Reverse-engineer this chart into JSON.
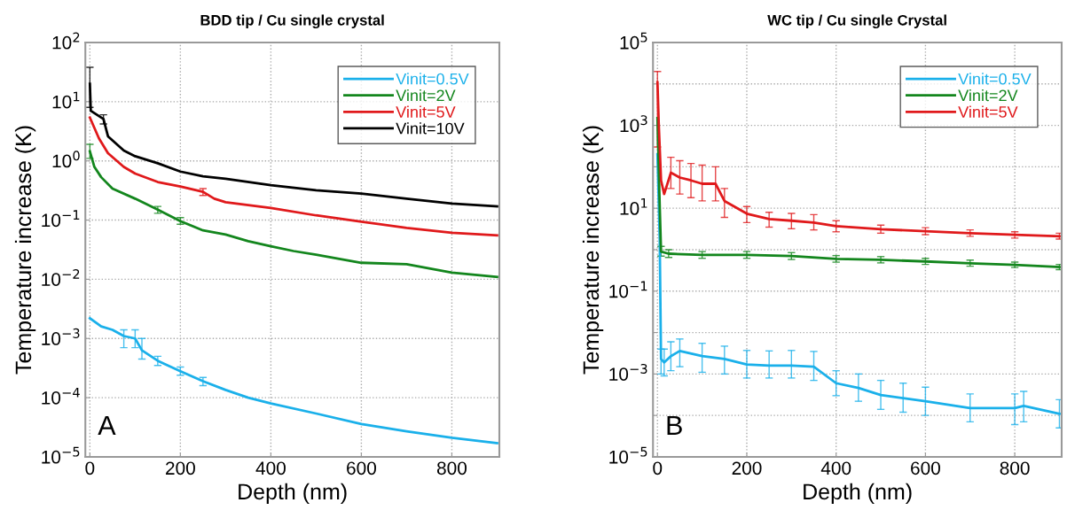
{
  "chart_data": [
    {
      "type": "line",
      "title": "BDD tip / Cu single crystal",
      "xlabel": "Depth (nm)",
      "ylabel": "Temperature increase (K)",
      "annotations": [
        "A"
      ],
      "log": "y",
      "grid": true,
      "legend": "top right",
      "marker": "none",
      "line_style": "solid",
      "xlim": [
        -10,
        905
      ],
      "xticks": [
        0,
        200,
        400,
        600,
        800
      ],
      "ylim": [
        1e-05,
        100
      ],
      "yticks": [
        {
          "value": 1e-05,
          "label": "10$^{−5}$"
        },
        {
          "value": 0.0001,
          "label": "10$^{−4}$"
        },
        {
          "value": 0.001,
          "label": "10$^{−3}$"
        },
        {
          "value": 0.01,
          "label": "10$^{−2}$"
        },
        {
          "value": 0.1,
          "label": "10$^{−1}$"
        },
        {
          "value": 1,
          "label": "10$^{0}$"
        },
        {
          "value": 10,
          "label": "10$^{1}$"
        },
        {
          "value": 100,
          "label": "10$^{2}$"
        }
      ],
      "series": [
        {
          "name": "Vinit=0.5V",
          "color": "#1ab0ea",
          "x": [
            0,
            25,
            50,
            75,
            100,
            115,
            150,
            200,
            250,
            300,
            350,
            400,
            500,
            600,
            700,
            800,
            900
          ],
          "values": [
            0.0022,
            0.0016,
            0.0014,
            0.0011,
            0.001,
            0.00063,
            0.00042,
            0.00028,
            0.00019,
            0.000135,
            0.0001,
            8e-05,
            5.4e-05,
            3.6e-05,
            2.7e-05,
            2.1e-05,
            1.7e-05
          ],
          "errors": [
            null,
            null,
            null,
            [
              0.0007,
              0.0014
            ],
            [
              0.0007,
              0.0014
            ],
            [
              0.00045,
              0.001
            ],
            [
              0.00035,
              0.0005
            ],
            [
              0.00024,
              0.00033
            ],
            [
              0.00016,
              0.00022
            ],
            null,
            null,
            null,
            null,
            null,
            null,
            null,
            null
          ]
        },
        {
          "name": "Vinit=2V",
          "color": "#13861d",
          "x": [
            0,
            10,
            25,
            50,
            100,
            150,
            200,
            250,
            300,
            350,
            400,
            450,
            500,
            600,
            700,
            800,
            900
          ],
          "values": [
            1.45,
            0.79,
            0.53,
            0.34,
            0.23,
            0.15,
            0.096,
            0.067,
            0.057,
            0.044,
            0.036,
            0.03,
            0.026,
            0.019,
            0.018,
            0.013,
            0.011
          ],
          "errors": [
            [
              1.1,
              1.9
            ],
            null,
            null,
            null,
            null,
            [
              0.13,
              0.17
            ],
            [
              0.085,
              0.11
            ],
            null,
            null,
            null,
            null,
            null,
            null,
            null,
            null,
            null,
            null
          ]
        },
        {
          "name": "Vinit=5V",
          "color": "#e0191b",
          "x": [
            0,
            10,
            20,
            40,
            75,
            100,
            150,
            200,
            250,
            275,
            300,
            400,
            500,
            600,
            700,
            800,
            900
          ],
          "values": [
            5.4,
            3.6,
            2.4,
            1.35,
            0.79,
            0.61,
            0.44,
            0.37,
            0.3,
            0.23,
            0.2,
            0.16,
            0.12,
            0.094,
            0.074,
            0.061,
            0.055
          ],
          "errors": [
            null,
            null,
            null,
            null,
            null,
            null,
            null,
            null,
            [
              0.26,
              0.34
            ],
            null,
            null,
            null,
            null,
            null,
            null,
            null,
            null
          ]
        },
        {
          "name": "Vinit=10V",
          "color": "#000000",
          "x": [
            0,
            2,
            30,
            40,
            75,
            100,
            150,
            200,
            250,
            300,
            400,
            500,
            600,
            700,
            800,
            900
          ],
          "values": [
            20,
            7,
            5.1,
            2.6,
            1.5,
            1.2,
            0.91,
            0.66,
            0.55,
            0.5,
            0.39,
            0.32,
            0.28,
            0.23,
            0.19,
            0.17
          ],
          "errors": [
            [
              8,
              38
            ],
            null,
            [
              4.2,
              6
            ],
            null,
            null,
            null,
            null,
            null,
            null,
            null,
            null,
            null,
            null,
            null,
            null,
            null
          ]
        }
      ]
    },
    {
      "type": "line",
      "title": "WC tip / Cu single Crystal",
      "xlabel": "Depth (nm)",
      "ylabel": "Temperature increase (K)",
      "annotations": [
        "B"
      ],
      "log": "y",
      "grid": true,
      "legend": "top right",
      "marker": "none",
      "line_style": "solid",
      "xlim": [
        -10,
        905
      ],
      "xticks": [
        0,
        200,
        400,
        600,
        800
      ],
      "ylim": [
        1e-05,
        100000
      ],
      "yticks": [
        {
          "value": 1e-05,
          "label": "10$^{−5}$"
        },
        {
          "value": 0.0001,
          "label": null
        },
        {
          "value": 0.001,
          "label": "10$^{−3}$"
        },
        {
          "value": 0.01,
          "label": null
        },
        {
          "value": 0.1,
          "label": "10$^{−1}$"
        },
        {
          "value": 1,
          "label": null
        },
        {
          "value": 10,
          "label": "10$^{1}$"
        },
        {
          "value": 100,
          "label": null
        },
        {
          "value": 1000,
          "label": "10$^{3}$"
        },
        {
          "value": 10000,
          "label": null
        },
        {
          "value": 100000,
          "label": "10$^{5}$"
        }
      ],
      "series": [
        {
          "name": "Vinit=0.5V",
          "color": "#1ab0ea",
          "x": [
            0,
            5,
            8,
            15,
            30,
            50,
            100,
            150,
            200,
            250,
            300,
            350,
            400,
            450,
            500,
            550,
            600,
            700,
            800,
            820,
            900
          ],
          "values": [
            200,
            1.8,
            0.0023,
            0.0019,
            0.0027,
            0.0036,
            0.0027,
            0.0023,
            0.0017,
            0.0016,
            0.0016,
            0.0015,
            0.0006,
            0.00046,
            0.00031,
            0.00026,
            0.00022,
            0.00015,
            0.00015,
            0.00017,
            0.00011
          ],
          "errors": [
            null,
            null,
            [
              0.001,
              0.004
            ],
            [
              0.0009,
              0.004
            ],
            [
              0.0012,
              0.006
            ],
            [
              0.0015,
              0.007
            ],
            [
              0.0011,
              0.0055
            ],
            [
              0.001,
              0.0047
            ],
            [
              0.0008,
              0.0037
            ],
            [
              0.0008,
              0.0036
            ],
            [
              0.0008,
              0.0037
            ],
            [
              0.0007,
              0.0035
            ],
            [
              0.0003,
              0.0012
            ],
            [
              0.00022,
              0.001
            ],
            [
              0.00014,
              0.0007
            ],
            [
              0.00012,
              0.0006
            ],
            [
              0.0001,
              0.00048
            ],
            [
              7e-05,
              0.00033
            ],
            [
              6e-05,
              0.00033
            ],
            [
              7e-05,
              0.00038
            ],
            [
              5e-05,
              0.00024
            ]
          ]
        },
        {
          "name": "Vinit=2V",
          "color": "#13861d",
          "x": [
            0,
            5,
            8,
            25,
            100,
            200,
            300,
            400,
            500,
            600,
            700,
            800,
            900
          ],
          "values": [
            1500,
            12,
            0.9,
            0.8,
            0.75,
            0.75,
            0.7,
            0.6,
            0.57,
            0.52,
            0.47,
            0.43,
            0.38
          ],
          "errors": [
            null,
            null,
            [
              0.7,
              1.2
            ],
            [
              0.65,
              1
            ],
            [
              0.62,
              0.9
            ],
            [
              0.62,
              0.9
            ],
            [
              0.58,
              0.85
            ],
            [
              0.5,
              0.72
            ],
            [
              0.48,
              0.68
            ],
            [
              0.44,
              0.62
            ],
            [
              0.4,
              0.56
            ],
            [
              0.37,
              0.5
            ],
            [
              0.33,
              0.44
            ]
          ]
        },
        {
          "name": "Vinit=5V",
          "color": "#e0191b",
          "x": [
            0,
            3,
            8,
            15,
            30,
            50,
            75,
            100,
            130,
            150,
            200,
            250,
            300,
            350,
            400,
            500,
            600,
            700,
            800,
            900
          ],
          "values": [
            11000,
            1000,
            47,
            22,
            72,
            55,
            47,
            39,
            39,
            15,
            7.4,
            5.5,
            5,
            4.5,
            3.7,
            3.1,
            2.8,
            2.5,
            2.3,
            2.1
          ],
          "errors": [
            [
              300,
              20000
            ],
            null,
            null,
            null,
            [
              30,
              170
            ],
            [
              22,
              140
            ],
            [
              18,
              120
            ],
            [
              15,
              110
            ],
            [
              15,
              100
            ],
            [
              6,
              30
            ],
            [
              4.5,
              11
            ],
            [
              3.5,
              8
            ],
            [
              3.2,
              7.5
            ],
            [
              3,
              7
            ],
            [
              2.7,
              5
            ],
            [
              2.5,
              3.9
            ],
            [
              2.3,
              3.4
            ],
            [
              2.1,
              3
            ],
            [
              1.9,
              2.7
            ],
            [
              1.8,
              2.5
            ]
          ]
        }
      ]
    }
  ]
}
